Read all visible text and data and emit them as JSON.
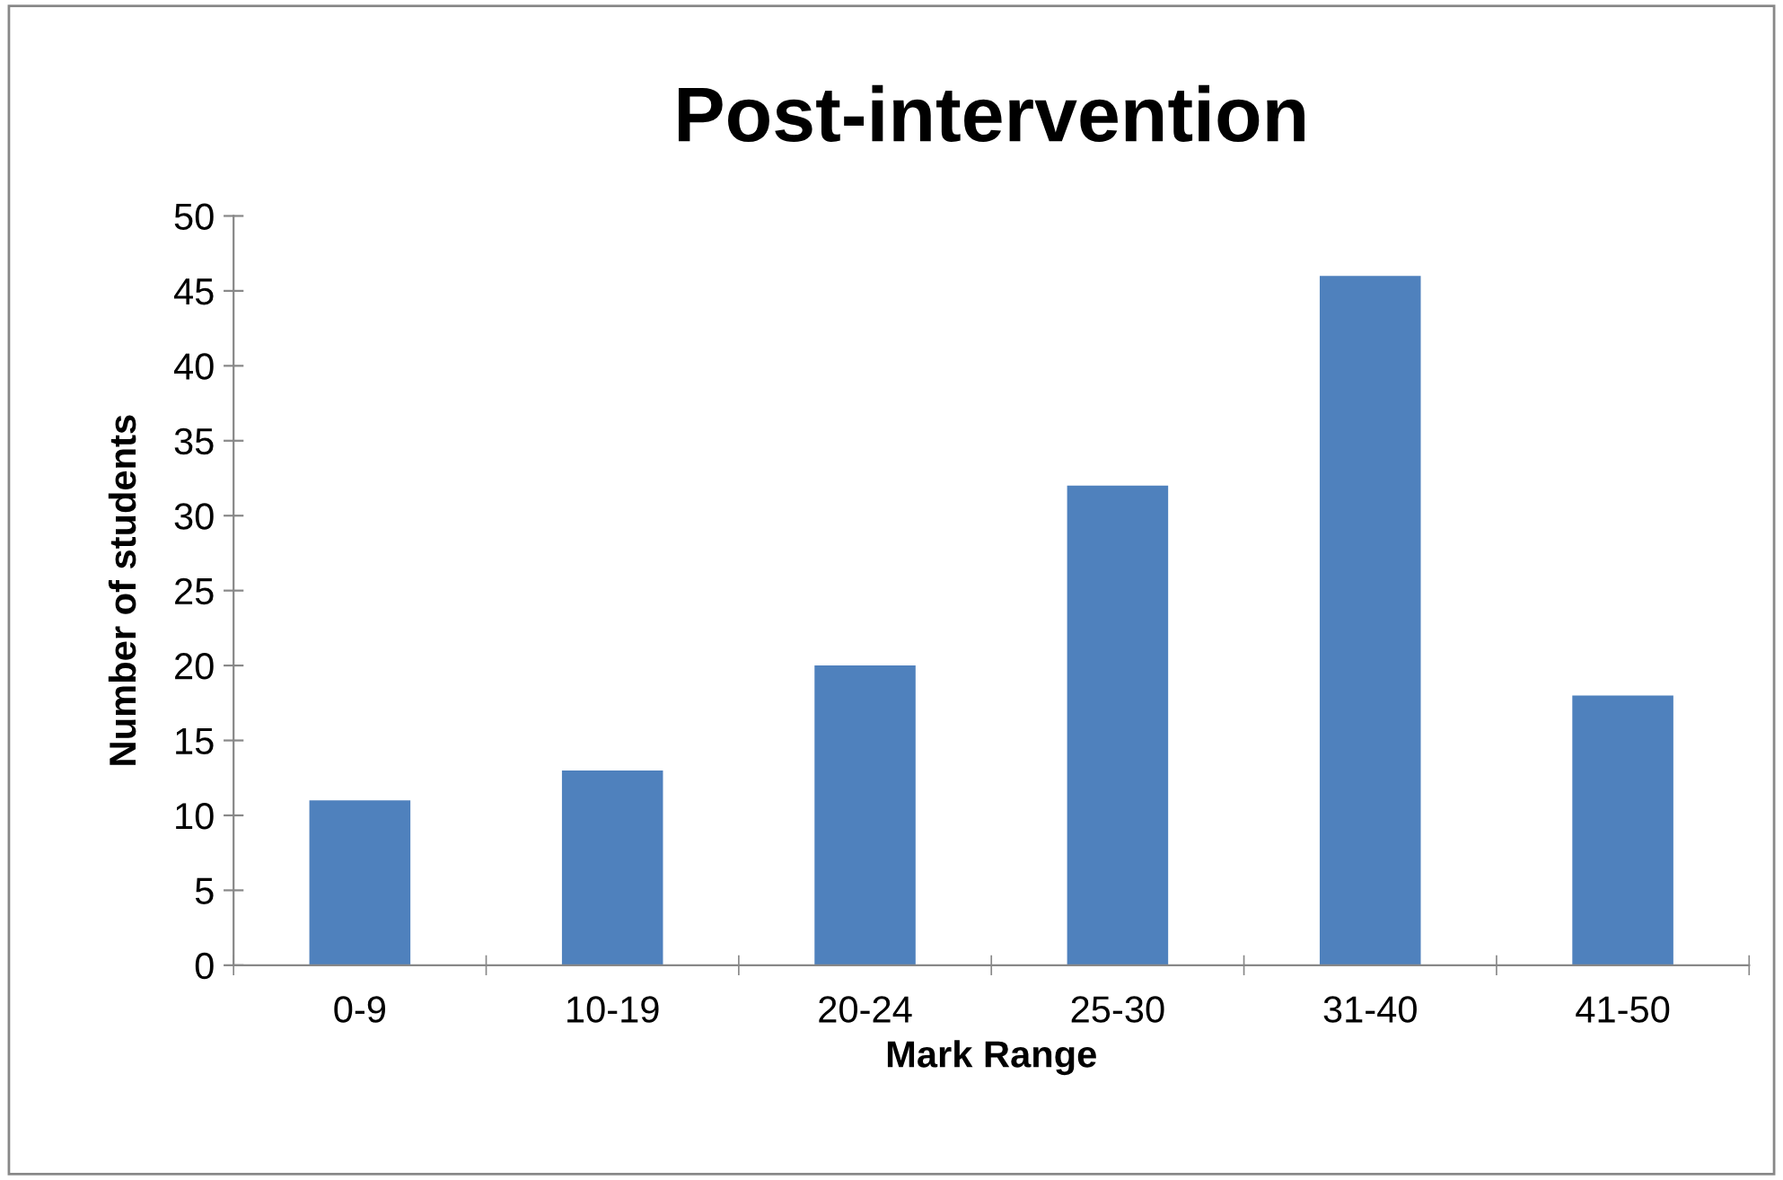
{
  "chart_data": {
    "type": "bar",
    "title": "Post-intervention",
    "xlabel": "Mark Range",
    "ylabel": "Number of students",
    "categories": [
      "0-9",
      "10-19",
      "20-24",
      "25-30",
      "31-40",
      "41-50"
    ],
    "values": [
      11,
      13,
      20,
      32,
      46,
      18
    ],
    "color": "#4f81bd",
    "ylim": [
      0,
      50
    ],
    "yticks": [
      0,
      5,
      10,
      15,
      20,
      25,
      30,
      35,
      40,
      45,
      50
    ],
    "grid": false,
    "legend": false
  }
}
